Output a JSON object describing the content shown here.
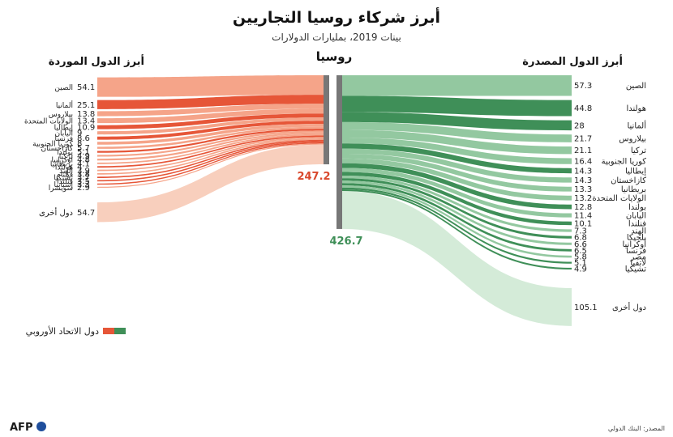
{
  "title": "أبرز شركاء روسيا التجاريين",
  "subtitle": "بينات 2019، بمليارات الدولارات",
  "colors": {
    "import_eu": "#e65638",
    "import_other": "#f5a489",
    "import_light": "#f8cfbd",
    "export_eu": "#3f8f58",
    "export_other": "#93c8a0",
    "export_light": "#d4ebd8",
    "bar": "#777777",
    "total_import": "#d9472b",
    "total_export": "#3f8f58"
  },
  "chart_data": {
    "type": "sankey",
    "title": "أبرز شركاء روسيا التجاريين",
    "subtitle": "بينات 2019، بمليارات الدولارات",
    "center_label": "روسيا",
    "imports": {
      "heading": "أبرز الدول الموردة",
      "total": "247.2",
      "flows": [
        {
          "name": "الصين",
          "value": 54.1,
          "eu": false
        },
        {
          "name": "ألمانيا",
          "value": 25.1,
          "eu": true
        },
        {
          "name": "بيلاروس",
          "value": 13.8,
          "eu": false
        },
        {
          "name": "الولايات المتحدة",
          "value": 13.4,
          "eu": false
        },
        {
          "name": "إيطاليا",
          "value": 10.9,
          "eu": true
        },
        {
          "name": "اليابان",
          "value": 9,
          "eu": false
        },
        {
          "name": "فرنسا",
          "value": 8.6,
          "eu": true
        },
        {
          "name": "كوريا الجنوبية",
          "value": 8,
          "eu": false
        },
        {
          "name": "كازاخستان",
          "value": 5.7,
          "eu": false
        },
        {
          "name": "بولندا",
          "value": 5.1,
          "eu": true
        },
        {
          "name": "تركيا",
          "value": 4.9,
          "eu": false
        },
        {
          "name": "أوكرانيا",
          "value": 4.8,
          "eu": false
        },
        {
          "name": "بريطانيا",
          "value": 4.1,
          "eu": false
        },
        {
          "name": "هولندا",
          "value": 4,
          "eu": true
        },
        {
          "name": "الهند",
          "value": 3.9,
          "eu": false
        },
        {
          "name": "فيتنام",
          "value": 3.8,
          "eu": false
        },
        {
          "name": "تشيكيا",
          "value": 3.7,
          "eu": true
        },
        {
          "name": "فنلندا",
          "value": 3.5,
          "eu": true
        },
        {
          "name": "إسبانيا",
          "value": 3.3,
          "eu": true
        },
        {
          "name": "سويسرا",
          "value": 2.9,
          "eu": false
        },
        {
          "name": "دول أخرى",
          "value": 54.7,
          "eu": false,
          "other": true
        }
      ]
    },
    "exports": {
      "heading": "أبرز الدول المصدرة",
      "total": "426.7",
      "flows": [
        {
          "name": "الصين",
          "value": 57.3,
          "eu": false
        },
        {
          "name": "هولندا",
          "value": 44.8,
          "eu": true
        },
        {
          "name": "ألمانيا",
          "value": 28,
          "eu": true
        },
        {
          "name": "بيلاروس",
          "value": 21.7,
          "eu": false
        },
        {
          "name": "تركيا",
          "value": 21.1,
          "eu": false
        },
        {
          "name": "كوريا الجنوبية",
          "value": 16.4,
          "eu": false
        },
        {
          "name": "إيطاليا",
          "value": 14.3,
          "eu": true
        },
        {
          "name": "كازاخستان",
          "value": 14.3,
          "eu": false
        },
        {
          "name": "بريطانيا",
          "value": 13.3,
          "eu": false
        },
        {
          "name": "الولايات المتحدة",
          "value": 13.2,
          "eu": false
        },
        {
          "name": "بولندا",
          "value": 12.8,
          "eu": true
        },
        {
          "name": "اليابان",
          "value": 11.4,
          "eu": false
        },
        {
          "name": "فنلندا",
          "value": 10.1,
          "eu": true
        },
        {
          "name": "الهند",
          "value": 7.3,
          "eu": false
        },
        {
          "name": "بلجيكا",
          "value": 6.8,
          "eu": true
        },
        {
          "name": "أوكرانيا",
          "value": 6.6,
          "eu": false
        },
        {
          "name": "فرنسا",
          "value": 6.5,
          "eu": true
        },
        {
          "name": "مصر",
          "value": 5.8,
          "eu": false
        },
        {
          "name": "لاتفيا",
          "value": 5.1,
          "eu": true
        },
        {
          "name": "تشيكيا",
          "value": 4.9,
          "eu": true
        },
        {
          "name": "دول أخرى",
          "value": 105.1,
          "eu": false,
          "other": true
        }
      ]
    },
    "legend": {
      "label": "دول الاتحاد الأوروبي",
      "placement": "bottom-left"
    }
  },
  "source": "المصدر: البنك الدولي",
  "logo": "AFP"
}
